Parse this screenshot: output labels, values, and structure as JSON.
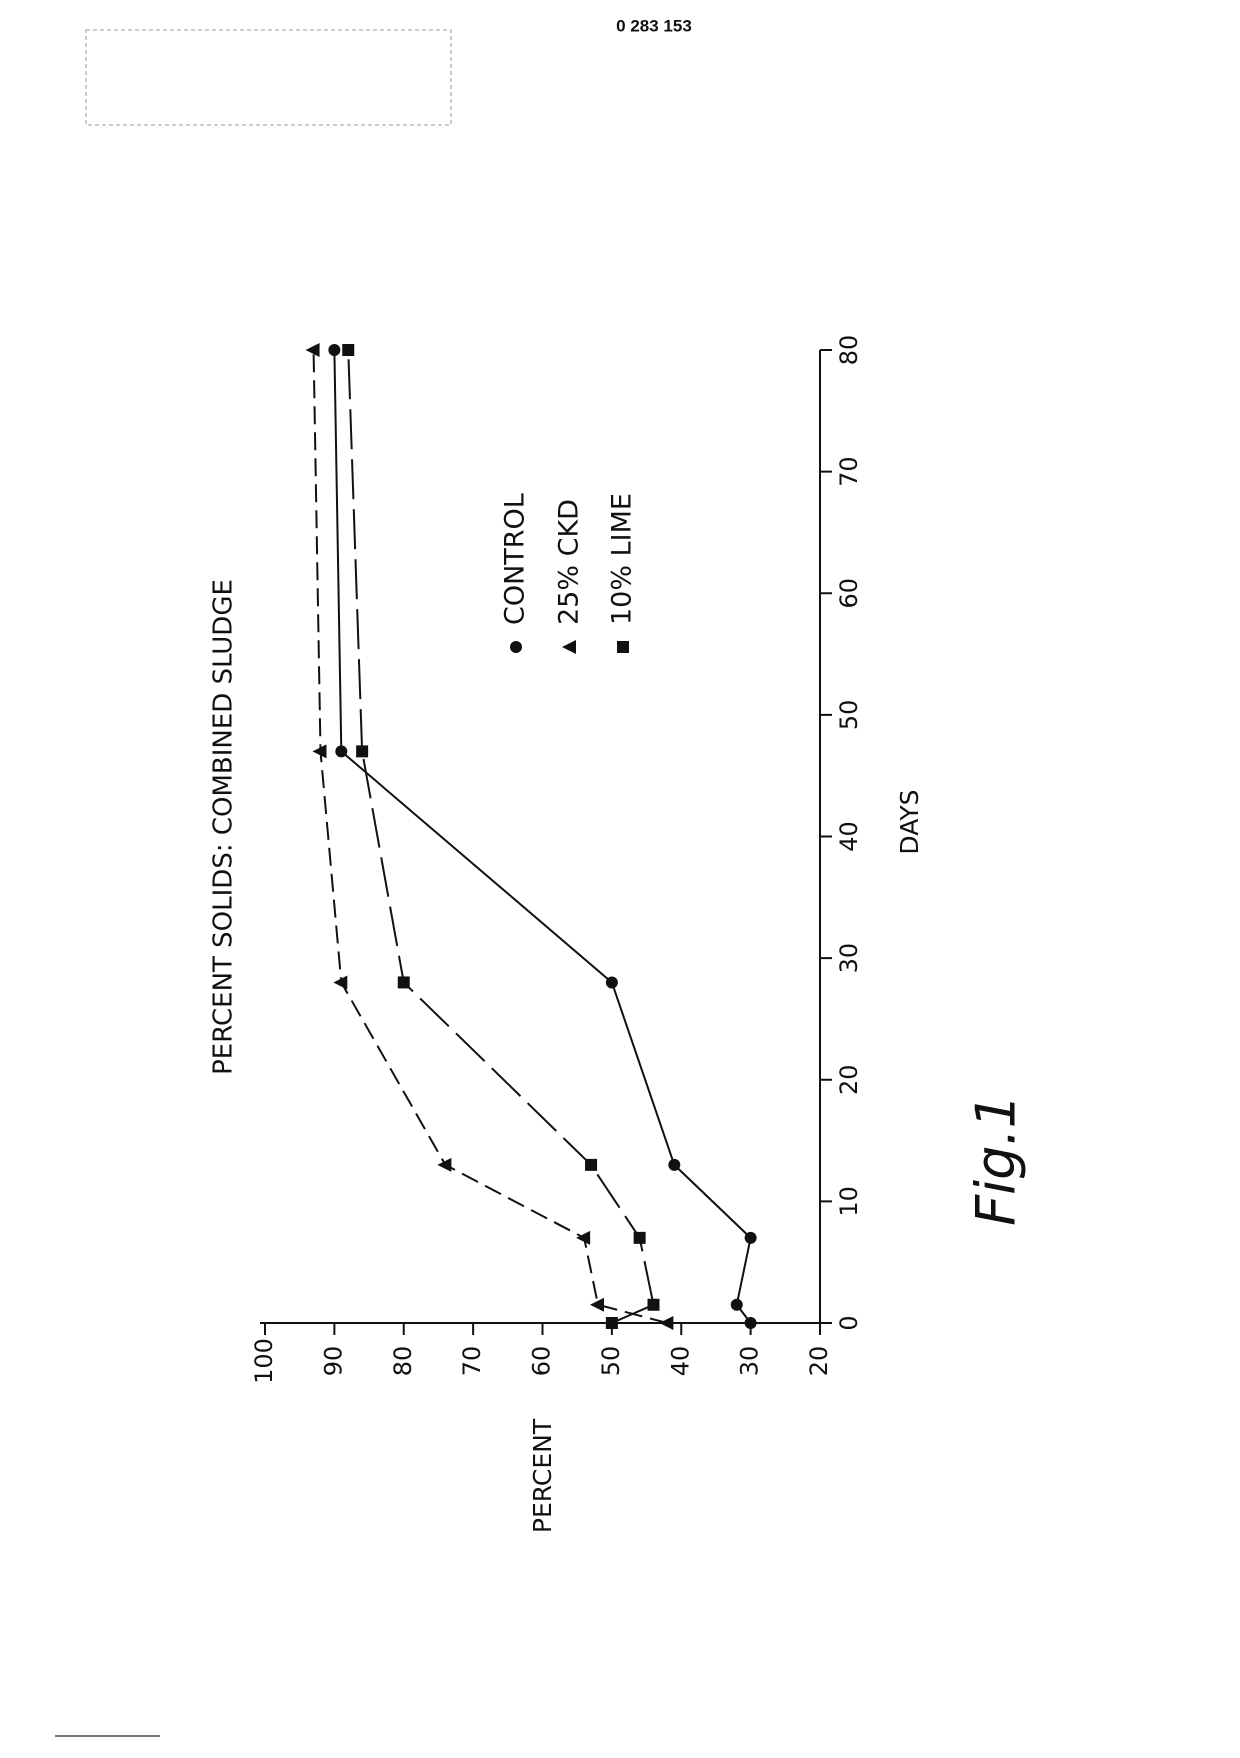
{
  "header": {
    "number": "0 283 153"
  },
  "chart_data": {
    "type": "line",
    "title": "PERCENT SOLIDS: COMBINED SLUDGE",
    "x_label": "DAYS",
    "y_label": "PERCENT",
    "figure_label": "Fig.1",
    "x": [
      0,
      1.5,
      7,
      13,
      28,
      47,
      80
    ],
    "xlim": [
      0,
      80
    ],
    "xticks": [
      0,
      10,
      20,
      30,
      40,
      50,
      60,
      70,
      80
    ],
    "ylim": [
      20,
      100
    ],
    "yticks": [
      20,
      30,
      40,
      50,
      60,
      70,
      80,
      90,
      100
    ],
    "grid": false,
    "series": [
      {
        "name": "CONTROL",
        "color": "#111111",
        "marker": "circle",
        "dash": "solid",
        "values": [
          30,
          32,
          30,
          41,
          50,
          89,
          90
        ]
      },
      {
        "name": "25% CKD",
        "color": "#111111",
        "marker": "triangle",
        "dash": "dashed",
        "values": [
          42,
          52,
          54,
          74,
          89,
          92,
          93
        ]
      },
      {
        "name": "10% LIME",
        "color": "#111111",
        "marker": "square",
        "dash": "long-dashed",
        "values": [
          50,
          44,
          46,
          53,
          80,
          86,
          88
        ]
      }
    ]
  }
}
